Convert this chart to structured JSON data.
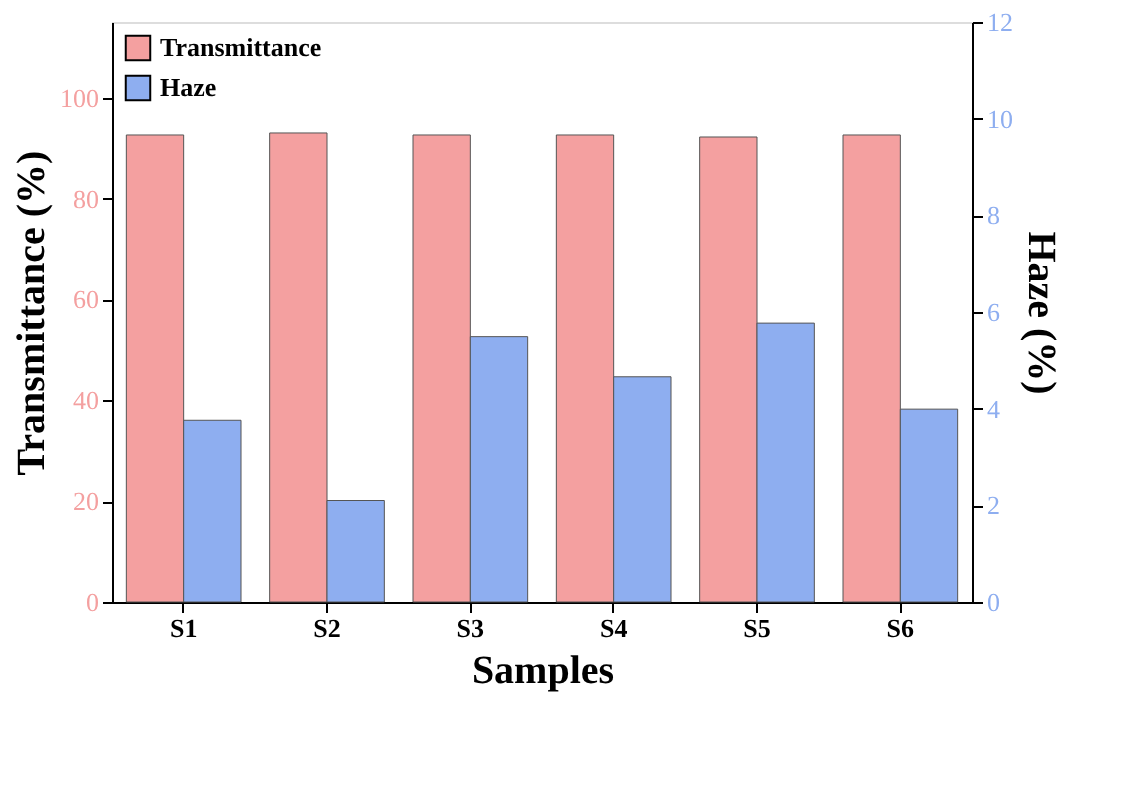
{
  "chart_data": {
    "type": "bar",
    "xlabel": "Samples",
    "ylabel": "Transmittance (%)",
    "y2label": "Haze (%)",
    "categories": [
      "S1",
      "S2",
      "S3",
      "S4",
      "S5",
      "S6"
    ],
    "series": [
      {
        "name": "Transmittance",
        "color": "#f4a0a0",
        "values": [
          92.6,
          93.0,
          92.6,
          92.6,
          92.2,
          92.6
        ]
      },
      {
        "name": "Haze",
        "color": "#8eaef0",
        "axis": "y2",
        "values": [
          3.76,
          2.1,
          5.49,
          4.66,
          5.77,
          3.99
        ]
      }
    ],
    "ylim": [
      0,
      115
    ],
    "yticks": [
      0,
      20,
      40,
      60,
      80,
      100
    ],
    "y2lim": [
      0,
      12
    ],
    "y2ticks": [
      0,
      2,
      4,
      6,
      8,
      10,
      12
    ],
    "grid": false,
    "legend": "top left"
  }
}
